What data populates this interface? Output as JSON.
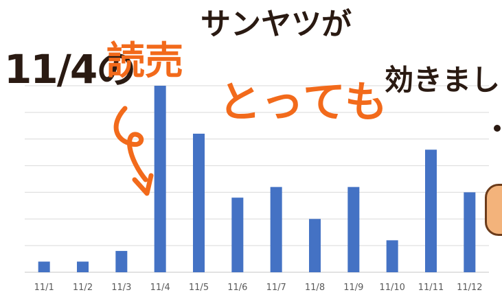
{
  "chart_data": {
    "type": "bar",
    "categories": [
      "11/1",
      "11/2",
      "11/3",
      "11/4",
      "11/5",
      "11/6",
      "11/7",
      "11/8",
      "11/9",
      "11/10",
      "11/11",
      "11/12"
    ],
    "values": [
      0.4,
      0.4,
      0.8,
      7.0,
      5.2,
      2.8,
      3.2,
      2.0,
      3.2,
      1.2,
      4.6,
      3.0
    ],
    "ylim": [
      0,
      7
    ],
    "grid": true,
    "bar_color": "#4472c4",
    "gridline_color": "#d9d9d9",
    "tick_color": "#595959"
  },
  "annotation": {
    "date": "11/4の",
    "product": "読売",
    "rest1": "サンヤツが",
    "emphasis": "とっても",
    "rest2": "効きまし",
    "text_color": "#2a1a12",
    "accent_color": "#f26a1b"
  }
}
